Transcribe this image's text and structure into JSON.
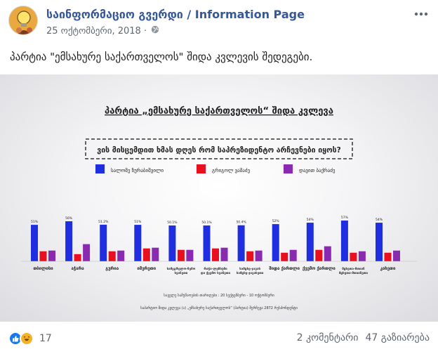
{
  "post": {
    "page_name": "საინფორმაციო გვერდი / Information Page",
    "date": "25 ოქტომბერი, 2018 ·",
    "text": "პარტია \"ემსახურე საქართველოს\" შიდა კვლევის შედეგები.",
    "reaction_count": "17",
    "comments": "2 კომენტარი",
    "shares": "47 გაზიარება",
    "icons": {
      "more": "more-options-icon",
      "globe": "globe-icon",
      "like": "like-reaction-icon",
      "haha": "haha-reaction-icon",
      "avatar": "lightbulb-avatar-icon"
    }
  },
  "chart_data": {
    "type": "bar",
    "title": "პარტია „ემსახურე საქართველოს“ შიდა კვლევა",
    "question": "ვის მისცემდით ხმას დღეს რომ საპრეზიდენტო არჩევნები იყოს?",
    "categories": [
      "თბილისი",
      "აჭარა",
      "გურია",
      "იმერეთი",
      "სამეგრელო-ზემო სვანეთი",
      "რაჭა-ლეჩხუმი და ქვემო სვანეთი",
      "სამცხე-ჯავახეთი",
      "შიდა ქართლი",
      "ქვემო ქართლი",
      "მცხეთა-მთიანეთი",
      "კახეთი"
    ],
    "series": [
      {
        "name": "სალომე ზურაბიშვილი",
        "color": "#1f2fe0",
        "values": [
          51,
          56,
          51.2,
          51,
          50.1,
          50.1,
          50.4,
          52,
          54,
          57,
          54
        ]
      },
      {
        "name": "გრიგოლ ვაშაძე",
        "color": "#e8101e",
        "values": [
          14,
          10,
          14,
          18,
          16,
          18,
          14,
          12,
          16,
          12,
          12
        ]
      },
      {
        "name": "დავით ბაქრაძე",
        "color": "#8a2ab0",
        "values": [
          15,
          24,
          15,
          19,
          16,
          19,
          15,
          16,
          21,
          14,
          15
        ]
      }
    ],
    "data_labels": [
      "51%",
      "56%",
      "51.2%",
      "51%",
      "50.1%",
      "50.1%",
      "50.4%",
      "52%",
      "54%",
      "57%",
      "54%"
    ],
    "footnote_1": "საველე სამუშაოების თარიღები : 20 სექტემბერი - 10 ოქტომბერი",
    "footnote_2": "საპარტიო შიდა კვლევა (ა) „ემსახურე საქართველოს“ (პარტია) შერჩევა 2872 რესპონდენტი",
    "legend_placement": "top",
    "grid": false
  }
}
